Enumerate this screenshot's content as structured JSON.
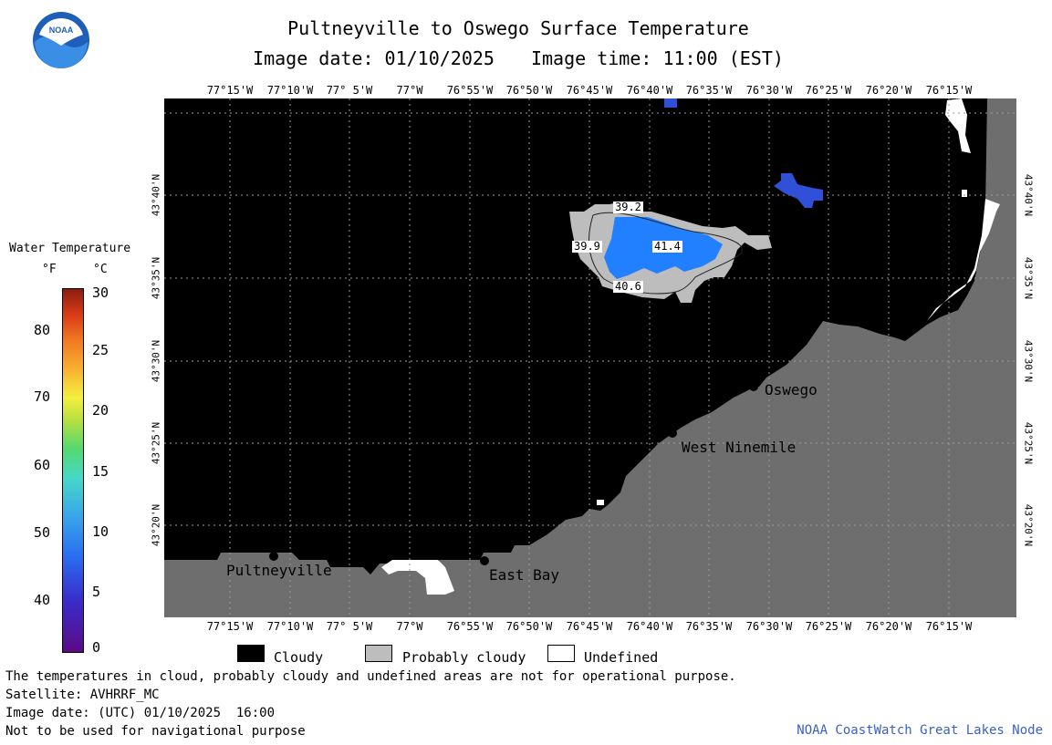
{
  "title": "Pultneyville to Oswego Surface Temperature",
  "image_date_label": "Image date: 01/10/2025",
  "image_time_label": "Image time: 11:00 (EST)",
  "logo_text": "NOAA",
  "longitude_ticks": [
    "77°15'W",
    "77°10'W",
    "77° 5'W",
    "77°W",
    "76°55'W",
    "76°50'W",
    "76°45'W",
    "76°40'W",
    "76°35'W",
    "76°30'W",
    "76°25'W",
    "76°20'W",
    "76°15'W"
  ],
  "latitude_ticks": [
    "43°40'N",
    "43°35'N",
    "43°30'N",
    "43°25'N",
    "43°20'N"
  ],
  "places": [
    {
      "name": "Pultneyville"
    },
    {
      "name": "East Bay"
    },
    {
      "name": "West Ninemile"
    },
    {
      "name": "Oswego"
    }
  ],
  "isotherm_labels": [
    "39.2",
    "39.9",
    "41.4",
    "40.6"
  ],
  "legend": {
    "title": "Water Temperature",
    "unit_f": "°F",
    "unit_c": "°C",
    "f_labels": [
      "80",
      "70",
      "60",
      "50",
      "40"
    ],
    "c_labels": [
      "30",
      "25",
      "20",
      "15",
      "10",
      "5",
      "0"
    ],
    "colors": [
      "#5b0a86",
      "#3a2cc9",
      "#2a6cf0",
      "#3aa8e8",
      "#45d8c8",
      "#55d870",
      "#b8e040",
      "#f3f040",
      "#f8b030",
      "#f07820",
      "#d83a18",
      "#8a1e0e"
    ]
  },
  "categories": [
    {
      "label": "Cloudy",
      "color": "#000000"
    },
    {
      "label": "Probably cloudy",
      "color": "#bdbdbd"
    },
    {
      "label": "Undefined",
      "color": "#ffffff"
    }
  ],
  "map_colors": {
    "land": "#6e6e6e",
    "cloud": "#000000",
    "probably_cloudy": "#bdbdbd",
    "water_warm": "#2080ff",
    "water_cool": "#3050d8"
  },
  "notes": [
    "The temperatures in cloud, probably cloudy and undefined areas are not for operational purpose.",
    "Satellite: AVHRRF_MC",
    "Image date: (UTC) 01/10/2025  16:00",
    "Not to be used for navigational purpose"
  ],
  "credit": "NOAA CoastWatch Great Lakes Node"
}
